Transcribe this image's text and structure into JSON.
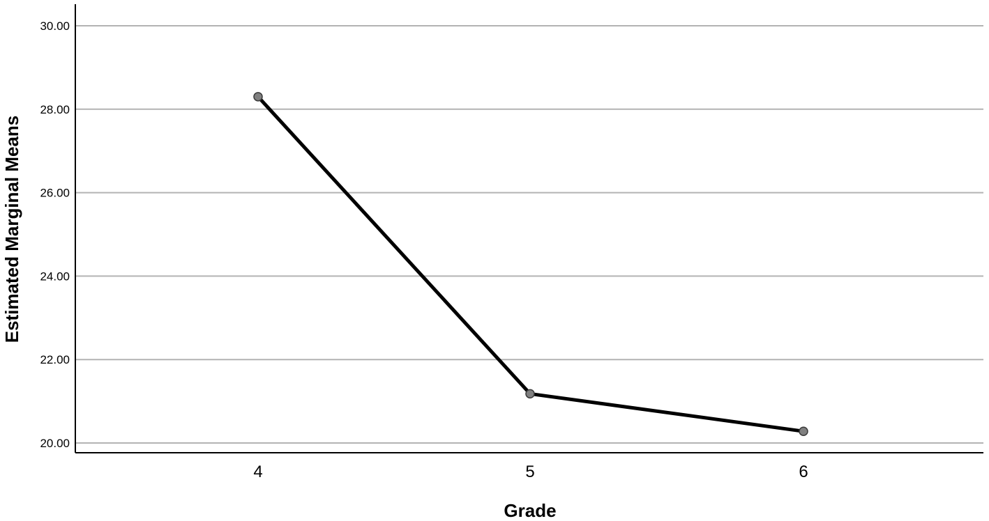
{
  "chart_data": {
    "type": "line",
    "title": "",
    "xlabel": "Grade",
    "ylabel": "Estimated Marginal Means",
    "categories": [
      "4",
      "5",
      "6"
    ],
    "series": [
      {
        "values": [
          28.3,
          21.18,
          20.28
        ],
        "line_color": "#000000",
        "marker_color": "#808080"
      }
    ],
    "ylim": [
      19.75,
      30.5
    ],
    "yticks": [
      20,
      22,
      24,
      26,
      28,
      30
    ],
    "ytick_labels": [
      "20.00",
      "22.00",
      "24.00",
      "26.00",
      "28.00",
      "30.00"
    ],
    "grid": "horizontal",
    "grid_color": "#b3b3b3",
    "legend": "none"
  }
}
